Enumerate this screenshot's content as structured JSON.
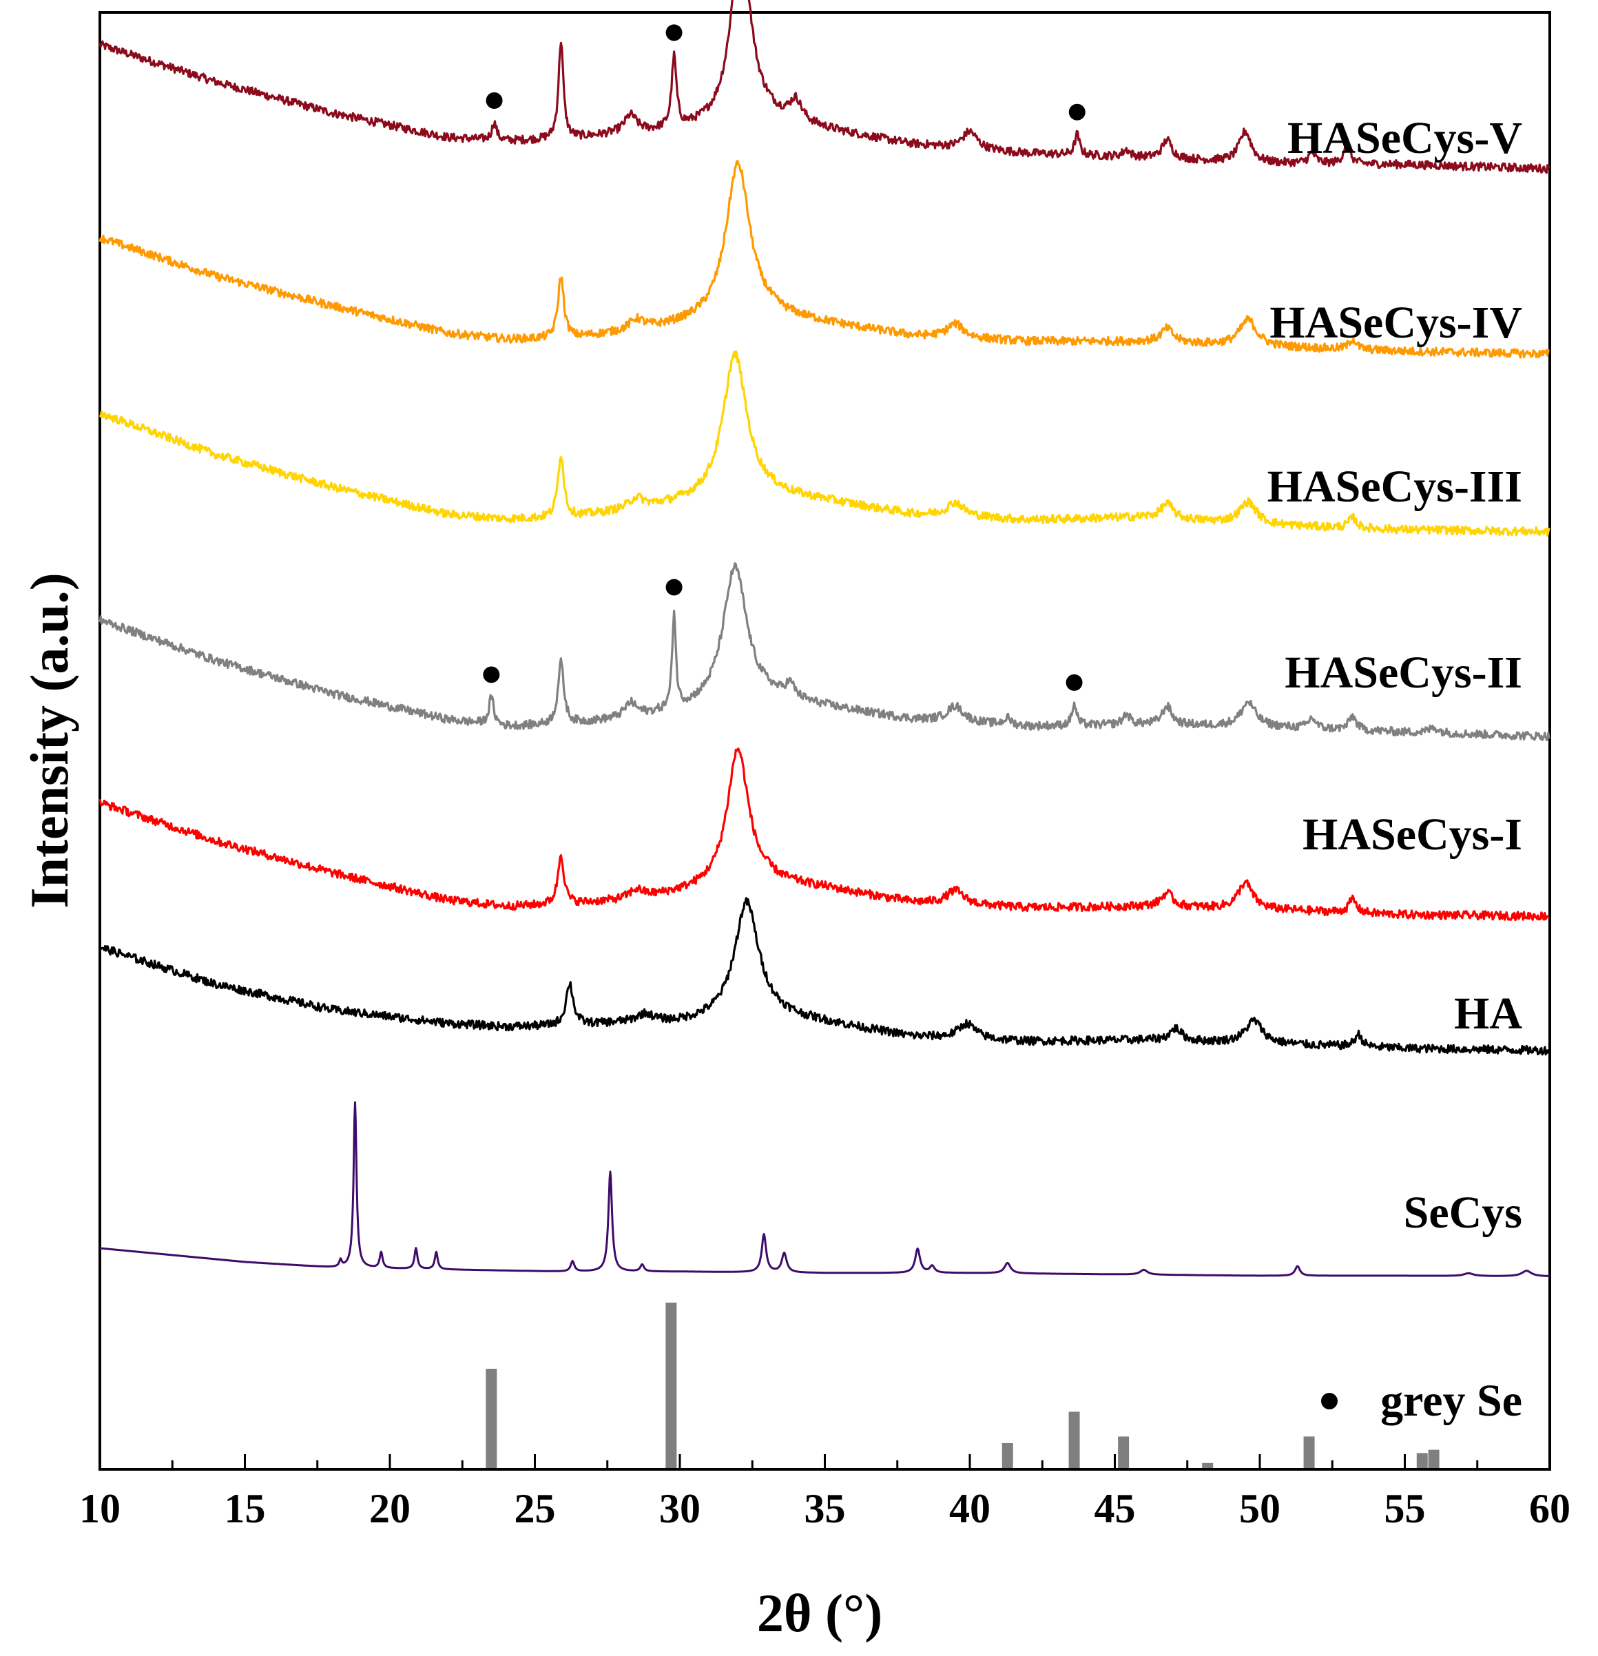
{
  "chart_data": {
    "type": "line",
    "title": "",
    "xlabel": "2θ (°)",
    "ylabel": "Intensity (a.u.)",
    "xlim": [
      10,
      60
    ],
    "xticks": [
      "10",
      "15",
      "20",
      "25",
      "30",
      "35",
      "40",
      "45",
      "50",
      "55",
      "60"
    ],
    "grid": false,
    "marker_symbol": "●",
    "series": [
      {
        "name": "HASeCys-V",
        "color": "#8b0a1c",
        "baseline": [
          [
            10,
            300
          ],
          [
            14,
            246
          ],
          [
            18,
            201
          ],
          [
            22,
            165
          ],
          [
            24,
            160
          ],
          [
            26,
            162
          ],
          [
            28,
            170
          ],
          [
            30,
            174
          ],
          [
            33,
            190
          ],
          [
            35,
            176
          ],
          [
            38,
            155
          ],
          [
            42,
            142
          ],
          [
            46,
            136
          ],
          [
            50,
            128
          ],
          [
            55,
            126
          ],
          [
            60,
            120
          ]
        ],
        "peaks": [
          [
            23.6,
            25,
            0.2
          ],
          [
            25.9,
            143,
            0.2
          ],
          [
            28.3,
            25,
            0.5
          ],
          [
            29.8,
            103,
            0.2
          ],
          [
            32.1,
            275,
            0.8
          ],
          [
            34.0,
            30,
            0.5
          ],
          [
            40.0,
            25,
            0.6
          ],
          [
            43.7,
            30,
            0.2
          ],
          [
            45.4,
            10,
            0.3
          ],
          [
            46.8,
            27,
            0.4
          ],
          [
            49.5,
            45,
            0.5
          ],
          [
            51.8,
            15,
            0.3
          ],
          [
            53.0,
            32,
            0.25
          ]
        ]
      },
      {
        "name": "HASeCys-IV",
        "color": "#ff9900",
        "baseline": [
          [
            10,
            265
          ],
          [
            14,
            209
          ],
          [
            18,
            166
          ],
          [
            22,
            126
          ],
          [
            24,
            117
          ],
          [
            26,
            117
          ],
          [
            28,
            126
          ],
          [
            30,
            136
          ],
          [
            33,
            150
          ],
          [
            35,
            140
          ],
          [
            38,
            122
          ],
          [
            42,
            114
          ],
          [
            46,
            114
          ],
          [
            50,
            107
          ],
          [
            55,
            100
          ],
          [
            60,
            96
          ]
        ],
        "peaks": [
          [
            25.9,
            90,
            0.25
          ],
          [
            28.5,
            15,
            0.6
          ],
          [
            32.0,
            227,
            1.0
          ],
          [
            39.5,
            20,
            0.7
          ],
          [
            46.8,
            20,
            0.5
          ],
          [
            49.6,
            38,
            0.7
          ],
          [
            53.2,
            15,
            0.3
          ]
        ]
      },
      {
        "name": "HASeCys-III",
        "color": "#ffd400",
        "baseline": [
          [
            10,
            255
          ],
          [
            14,
            195
          ],
          [
            18,
            148
          ],
          [
            22,
            108
          ],
          [
            24,
            101
          ],
          [
            26,
            102
          ],
          [
            28,
            112
          ],
          [
            30,
            122
          ],
          [
            33,
            135
          ],
          [
            35,
            127
          ],
          [
            38,
            108
          ],
          [
            42,
            100
          ],
          [
            46,
            104
          ],
          [
            50,
            93
          ],
          [
            55,
            86
          ],
          [
            60,
            83
          ]
        ],
        "peaks": [
          [
            25.9,
            93,
            0.25
          ],
          [
            28.5,
            15,
            0.6
          ],
          [
            31.9,
            210,
            1.0
          ],
          [
            39.5,
            20,
            0.7
          ],
          [
            46.8,
            22,
            0.5
          ],
          [
            49.6,
            32,
            0.7
          ],
          [
            53.2,
            15,
            0.3
          ]
        ]
      },
      {
        "name": "HASeCys-II",
        "color": "#808080",
        "baseline": [
          [
            10,
            235
          ],
          [
            14,
            176
          ],
          [
            18,
            128
          ],
          [
            22,
            90
          ],
          [
            24,
            80
          ],
          [
            26,
            82
          ],
          [
            28,
            90
          ],
          [
            30,
            100
          ],
          [
            33,
            118
          ],
          [
            35,
            108
          ],
          [
            38,
            90
          ],
          [
            42,
            80
          ],
          [
            46,
            83
          ],
          [
            50,
            80
          ],
          [
            55,
            72
          ],
          [
            60,
            66
          ]
        ],
        "peaks": [
          [
            23.5,
            40,
            0.2
          ],
          [
            25.9,
            90,
            0.25
          ],
          [
            28.3,
            20,
            0.5
          ],
          [
            29.8,
            140,
            0.15
          ],
          [
            31.9,
            200,
            1.0
          ],
          [
            33.8,
            20,
            0.4
          ],
          [
            39.5,
            23,
            0.7
          ],
          [
            41.3,
            10,
            0.3
          ],
          [
            43.6,
            30,
            0.2
          ],
          [
            45.4,
            15,
            0.3
          ],
          [
            46.8,
            27,
            0.4
          ],
          [
            49.6,
            35,
            0.6
          ],
          [
            51.8,
            15,
            0.3
          ],
          [
            53.2,
            20,
            0.3
          ],
          [
            56.0,
            8,
            0.4
          ]
        ]
      },
      {
        "name": "HASeCys-I",
        "color": "#ff0000",
        "baseline": [
          [
            10,
            215
          ],
          [
            14,
            159
          ],
          [
            18,
            113
          ],
          [
            22,
            73
          ],
          [
            24,
            64
          ],
          [
            26,
            66
          ],
          [
            28,
            72
          ],
          [
            30,
            82
          ],
          [
            33,
            98
          ],
          [
            35,
            90
          ],
          [
            38,
            70
          ],
          [
            42,
            62
          ],
          [
            46,
            64
          ],
          [
            50,
            60
          ],
          [
            55,
            52
          ],
          [
            60,
            50
          ]
        ],
        "peaks": [
          [
            25.9,
            73,
            0.25
          ],
          [
            28.5,
            12,
            0.6
          ],
          [
            32.0,
            200,
            0.9
          ],
          [
            39.5,
            20,
            0.7
          ],
          [
            46.8,
            20,
            0.5
          ],
          [
            49.5,
            38,
            0.6
          ],
          [
            53.2,
            20,
            0.3
          ]
        ]
      },
      {
        "name": "HA",
        "color": "#000000",
        "baseline": [
          [
            10,
            195
          ],
          [
            14,
            141
          ],
          [
            18,
            104
          ],
          [
            22,
            84
          ],
          [
            24,
            79
          ],
          [
            26,
            80
          ],
          [
            28,
            84
          ],
          [
            30,
            84
          ],
          [
            33,
            95
          ],
          [
            35,
            85
          ],
          [
            38,
            65
          ],
          [
            42,
            58
          ],
          [
            46,
            60
          ],
          [
            50,
            55
          ],
          [
            55,
            48
          ],
          [
            60,
            45
          ]
        ],
        "peaks": [
          [
            26.2,
            61,
            0.3
          ],
          [
            28.8,
            12,
            0.7
          ],
          [
            32.3,
            168,
            1.0
          ],
          [
            39.9,
            22,
            0.7
          ],
          [
            47.1,
            18,
            0.5
          ],
          [
            49.8,
            33,
            0.7
          ],
          [
            53.4,
            18,
            0.3
          ]
        ]
      },
      {
        "name": "SeCys",
        "color": "#3f0b6a",
        "baseline": [
          [
            10,
            48
          ],
          [
            15,
            28
          ],
          [
            18,
            20
          ],
          [
            22,
            17
          ],
          [
            26,
            14
          ],
          [
            30,
            14
          ],
          [
            35,
            12
          ],
          [
            40,
            12
          ],
          [
            45,
            10
          ],
          [
            50,
            8
          ],
          [
            55,
            8
          ],
          [
            60,
            7
          ]
        ],
        "peaks": [
          [
            18.8,
            240,
            0.12
          ],
          [
            18.3,
            10,
            0.1
          ],
          [
            19.7,
            23,
            0.12
          ],
          [
            20.9,
            30,
            0.12
          ],
          [
            21.6,
            25,
            0.12
          ],
          [
            26.3,
            15,
            0.15
          ],
          [
            27.6,
            145,
            0.15
          ],
          [
            28.7,
            10,
            0.15
          ],
          [
            32.9,
            55,
            0.18
          ],
          [
            33.6,
            28,
            0.2
          ],
          [
            38.2,
            35,
            0.2
          ],
          [
            38.7,
            10,
            0.2
          ],
          [
            41.3,
            15,
            0.25
          ],
          [
            46.0,
            7,
            0.3
          ],
          [
            51.3,
            14,
            0.2
          ],
          [
            57.2,
            4,
            0.4
          ],
          [
            59.2,
            8,
            0.4
          ]
        ]
      }
    ],
    "reference": {
      "name": "grey Se",
      "color": "#7f7f7f",
      "sticks": [
        [
          23.5,
          60
        ],
        [
          29.7,
          100
        ],
        [
          41.3,
          15
        ],
        [
          43.6,
          34
        ],
        [
          45.3,
          19
        ],
        [
          48.2,
          3
        ],
        [
          51.7,
          19
        ],
        [
          55.6,
          9
        ],
        [
          56.0,
          11
        ]
      ]
    },
    "markers": [
      {
        "series": "HASeCys-V",
        "x": 23.6
      },
      {
        "series": "HASeCys-V",
        "x": 29.8
      },
      {
        "series": "HASeCys-V",
        "x": 43.7
      },
      {
        "series": "HASeCys-II",
        "x": 23.5
      },
      {
        "series": "HASeCys-II",
        "x": 29.8
      },
      {
        "series": "HASeCys-II",
        "x": 43.6
      }
    ]
  }
}
